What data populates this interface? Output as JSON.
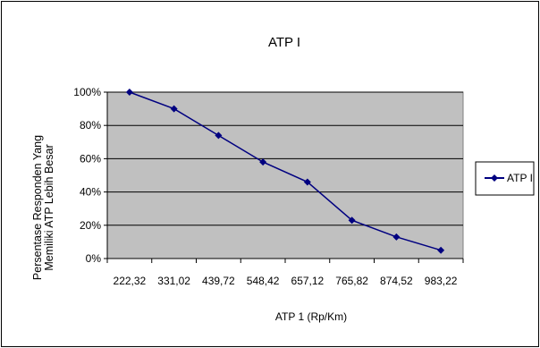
{
  "chart_data": {
    "type": "line",
    "title": "ATP I",
    "xlabel": "ATP 1 (Rp/Km)",
    "ylabel_lines": [
      "Persentase Responden Yang",
      "Memiliki ATP Lebih Besar"
    ],
    "categories": [
      "222,32",
      "331,02",
      "439,72",
      "548,42",
      "657,12",
      "765,82",
      "874,52",
      "983,22"
    ],
    "y_ticks": [
      "0%",
      "20%",
      "40%",
      "60%",
      "80%",
      "100%"
    ],
    "ylim": [
      0,
      100
    ],
    "grid": true,
    "legend_position": "right",
    "series": [
      {
        "name": "ATP I",
        "values": [
          100,
          90,
          74,
          58,
          46,
          23,
          13,
          5
        ],
        "color": "#000080"
      }
    ],
    "plot_background": "#c0c0c0"
  }
}
